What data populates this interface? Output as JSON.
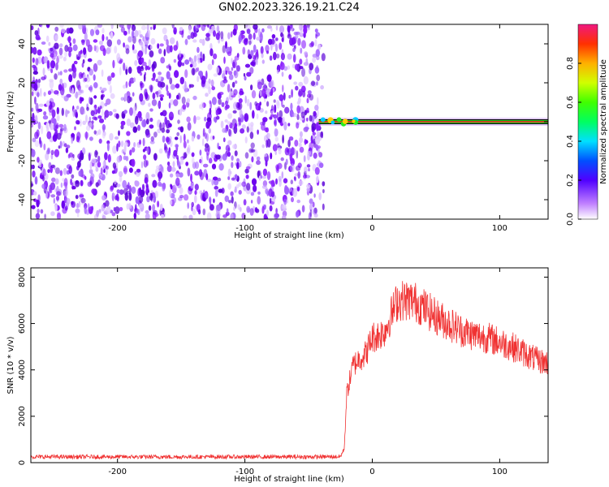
{
  "title": "GN02.2023.326.19.21.C24",
  "chart_data": [
    {
      "type": "heatmap",
      "xlabel": "Height of straight line (km)",
      "ylabel": "Frequency (Hz)",
      "xlim": [
        -268,
        138
      ],
      "ylim": [
        -50,
        50
      ],
      "xticks": [
        -200,
        -100,
        0,
        100
      ],
      "yticks": [
        -40,
        -20,
        0,
        20,
        40
      ],
      "colorbar": {
        "label": "Normalized spectral amplitude",
        "range": [
          0,
          1
        ],
        "ticks": [
          "0.0",
          "0.2",
          "0.4",
          "0.6",
          "0.8"
        ]
      },
      "noise_region_x": [
        -268,
        -42
      ],
      "signal_line": {
        "frequency": 0,
        "x_start": -42,
        "x_end": 138
      },
      "grid": false
    },
    {
      "type": "line",
      "xlabel": "Height of straight line (km)",
      "ylabel": "SNR (10 * v/v)",
      "xlim": [
        -268,
        138
      ],
      "ylim": [
        0,
        8400
      ],
      "xticks": [
        -200,
        -100,
        0,
        100
      ],
      "yticks": [
        0,
        2000,
        4000,
        6000,
        8000
      ],
      "series": [
        {
          "color": "#f03232",
          "x": [
            -268,
            -200,
            -100,
            -40,
            -25,
            -22,
            -20,
            -15,
            -10,
            -5,
            0,
            5,
            10,
            15,
            20,
            25,
            30,
            35,
            40,
            50,
            60,
            70,
            80,
            90,
            100,
            110,
            120,
            130,
            138
          ],
          "y": [
            250,
            250,
            250,
            250,
            260,
            600,
            3000,
            4200,
            4500,
            4700,
            5400,
            5500,
            5700,
            6400,
            7000,
            7000,
            7000,
            6900,
            6700,
            6300,
            6000,
            5700,
            5500,
            5400,
            5200,
            5000,
            4700,
            4400,
            4300
          ]
        }
      ],
      "grid": false
    }
  ]
}
